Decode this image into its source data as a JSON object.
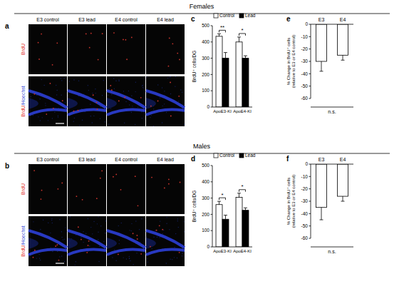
{
  "figure": {
    "sections": [
      {
        "title": "Females",
        "image_panel": {
          "label": "a",
          "columns": [
            "E3 control",
            "E3 lead",
            "E4 control",
            "E4 lead"
          ],
          "rows": [
            [
              {
                "text": "BrdU",
                "color": "#e0302a"
              }
            ],
            [
              {
                "text": "BrdU",
                "color": "#e0302a"
              },
              {
                "text": "/Hoechst",
                "color": "#3a4fd8"
              }
            ]
          ]
        },
        "chart_labels": [
          "c",
          "e"
        ]
      },
      {
        "title": "Males",
        "image_panel": {
          "label": "b",
          "columns": [
            "E3 control",
            "E3 lead",
            "E4 control",
            "E4 lead"
          ],
          "rows": [
            [
              {
                "text": "BrdU",
                "color": "#e0302a"
              }
            ],
            [
              {
                "text": "BrdU",
                "color": "#e0302a"
              },
              {
                "text": "/Hoechst",
                "color": "#3a4fd8"
              }
            ]
          ]
        },
        "chart_labels": [
          "d",
          "f"
        ]
      }
    ]
  },
  "chart_data": [
    {
      "type": "bar",
      "categories": [
        "ApoE3-KI",
        "ApoE4-KI"
      ],
      "series": [
        {
          "name": "Control",
          "color": "#ffffff",
          "values": [
            435,
            400
          ],
          "errors": [
            15,
            30
          ]
        },
        {
          "name": "Lead",
          "color": "#000000",
          "values": [
            300,
            300
          ],
          "errors": [
            35,
            15
          ]
        }
      ],
      "y_label": "BrdU⁺ cells/DG",
      "ylim": [
        0,
        500
      ],
      "yticks": [
        0,
        100,
        200,
        300,
        400,
        500
      ],
      "legend": "top",
      "annotations": [
        {
          "text": "**",
          "category": "ApoE3-KI"
        },
        {
          "text": "*",
          "category": "ApoE4-KI"
        }
      ]
    },
    {
      "type": "bar",
      "categories": [
        "E3",
        "E4"
      ],
      "values": [
        -30,
        -25
      ],
      "errors": [
        8,
        4
      ],
      "color": "#ffffff",
      "y_label": [
        "% Change in BrdU⁺ cells",
        "(relative to E3 or E4 control)"
      ],
      "ylim": [
        -60,
        0
      ],
      "yticks": [
        -60,
        -50,
        -40,
        -30,
        -20,
        -10,
        0
      ],
      "annotations": [
        {
          "text": "n.s."
        }
      ]
    },
    {
      "type": "bar",
      "categories": [
        "ApoE3-KI",
        "ApoE4-KI"
      ],
      "series": [
        {
          "name": "Control",
          "color": "#ffffff",
          "values": [
            260,
            305
          ],
          "errors": [
            20,
            25
          ]
        },
        {
          "name": "Lead",
          "color": "#000000",
          "values": [
            170,
            225
          ],
          "errors": [
            25,
            15
          ]
        }
      ],
      "y_label": "BrdU⁺ cells/DG",
      "ylim": [
        0,
        500
      ],
      "yticks": [
        0,
        100,
        200,
        300,
        400,
        500
      ],
      "legend": "top",
      "annotations": [
        {
          "text": "*",
          "category": "ApoE3-KI"
        },
        {
          "text": "*",
          "category": "ApoE4-KI"
        }
      ]
    },
    {
      "type": "bar",
      "categories": [
        "E3",
        "E4"
      ],
      "values": [
        -35,
        -26
      ],
      "errors": [
        10,
        4
      ],
      "color": "#ffffff",
      "y_label": [
        "% Change in BrdU⁺ cells",
        "(relative to E3 or E4 control)"
      ],
      "ylim": [
        -60,
        0
      ],
      "yticks": [
        -60,
        -50,
        -40,
        -30,
        -20,
        -10,
        0
      ],
      "annotations": [
        {
          "text": "n.s."
        }
      ]
    }
  ]
}
